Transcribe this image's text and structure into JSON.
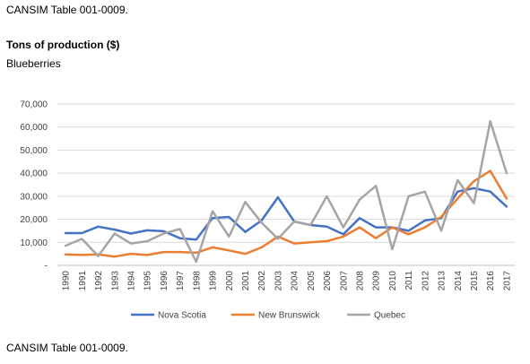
{
  "captions": {
    "top": "CANSIM Table 001-0009.",
    "bottom": "CANSIM Table 001-0009."
  },
  "chart_data": {
    "type": "line",
    "title": "Tons of production ($)",
    "subtitle": "Blueberries",
    "xlabel": "",
    "ylabel": "",
    "x": [
      "1990",
      "1991",
      "1992",
      "1993",
      "1994",
      "1995",
      "1996",
      "1997",
      "1998",
      "1999",
      "2000",
      "2001",
      "2002",
      "2003",
      "2004",
      "2005",
      "2006",
      "2007",
      "2008",
      "2009",
      "2010",
      "2011",
      "2012",
      "2013",
      "2014",
      "2015",
      "2016",
      "2017"
    ],
    "ylim": [
      0,
      70000
    ],
    "yticks": [
      0,
      10000,
      20000,
      30000,
      40000,
      50000,
      60000,
      70000
    ],
    "ytick_labels": [
      "-",
      "10,000",
      "20,000",
      "30,000",
      "40,000",
      "50,000",
      "60,000",
      "70,000"
    ],
    "grid": true,
    "legend_position": "bottom",
    "series": [
      {
        "name": "Nova Scotia",
        "color": "#4472C4",
        "values": [
          14000,
          14000,
          16800,
          15500,
          13800,
          15200,
          14800,
          11800,
          11200,
          20500,
          21000,
          14500,
          19500,
          29500,
          19000,
          17500,
          16800,
          13500,
          20500,
          16500,
          16500,
          15000,
          19500,
          20500,
          32000,
          33500,
          32000,
          25500
        ]
      },
      {
        "name": "New Brunswick",
        "color": "#ED7D31",
        "values": [
          4800,
          4500,
          4800,
          3800,
          5000,
          4500,
          5800,
          5800,
          5500,
          7800,
          6500,
          5000,
          7800,
          12500,
          9500,
          10000,
          10500,
          12500,
          16500,
          11800,
          16500,
          13500,
          16500,
          21000,
          29000,
          36500,
          41000,
          29000
        ]
      },
      {
        "name": "Quebec",
        "color": "#A5A5A5",
        "values": [
          8500,
          11500,
          4000,
          13800,
          9500,
          10500,
          13800,
          15800,
          1500,
          23500,
          12500,
          27500,
          18500,
          11500,
          19000,
          17500,
          30000,
          16500,
          28500,
          34500,
          7000,
          30000,
          32000,
          15000,
          37000,
          27000,
          62500,
          40000
        ]
      }
    ]
  }
}
